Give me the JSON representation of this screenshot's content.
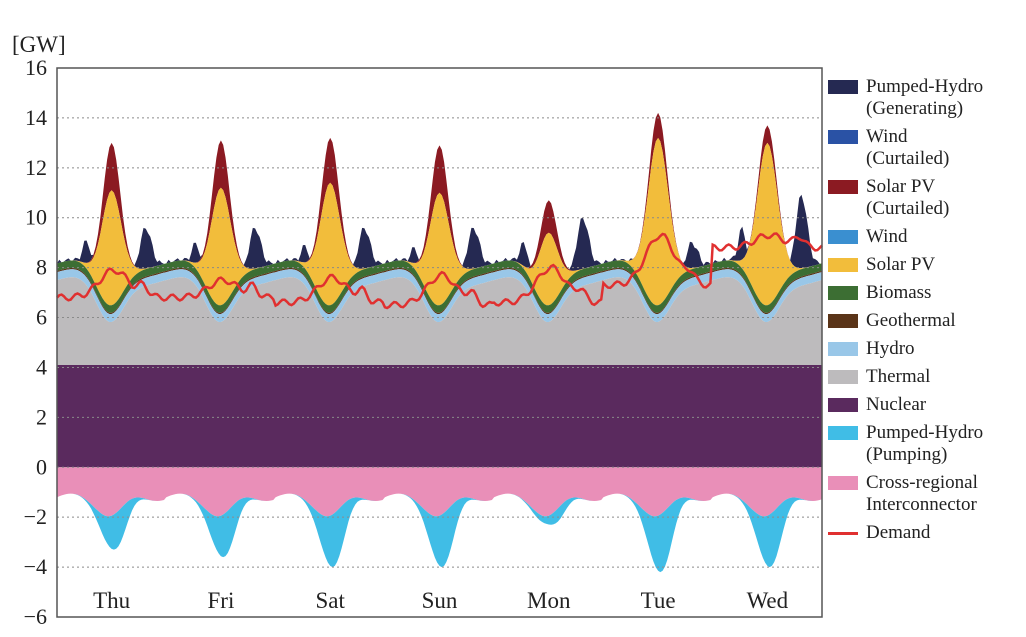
{
  "chart_data": {
    "type": "area",
    "unit_label": "[GW]",
    "ylim": [
      -6,
      16
    ],
    "yticks": [
      "16",
      "14",
      "12",
      "10",
      "8",
      "6",
      "4",
      "2",
      "0",
      "−2",
      "−4",
      "−6"
    ],
    "ytick_values": [
      16,
      14,
      12,
      10,
      8,
      6,
      4,
      2,
      0,
      -2,
      -4,
      -6
    ],
    "grid": "dotted-horizontal",
    "legend_position": "right",
    "days": [
      "Thu",
      "Fri",
      "Sat",
      "Sun",
      "Mon",
      "Tue",
      "Wed"
    ],
    "series": [
      {
        "name": "Pumped-Hydro\n(Generating)",
        "color": "#252952"
      },
      {
        "name": "Wind\n(Curtailed)",
        "color": "#2a52a5"
      },
      {
        "name": "Solar PV\n(Curtailed)",
        "color": "#8b1a22"
      },
      {
        "name": "Wind",
        "color": "#3a8fd0"
      },
      {
        "name": "Solar PV",
        "color": "#f2bd3b"
      },
      {
        "name": "Biomass",
        "color": "#3c6e33"
      },
      {
        "name": "Geothermal",
        "color": "#5a3418"
      },
      {
        "name": "Hydro",
        "color": "#99c7e8"
      },
      {
        "name": "Thermal",
        "color": "#bdbbbd"
      },
      {
        "name": "Nuclear",
        "color": "#5a2a5e"
      },
      {
        "name": "Pumped-Hydro\n(Pumping)",
        "color": "#40bde6"
      },
      {
        "name": "Cross-regional\nInterconnector",
        "color": "#e98fb8"
      },
      {
        "name": "Demand",
        "color": "#e03030",
        "style": "line"
      }
    ],
    "daily": {
      "solar_peak_total": [
        11.1,
        11.2,
        11.4,
        11.0,
        9.4,
        13.2,
        13.0
      ],
      "curtailed_peak_total": [
        13.0,
        13.1,
        13.2,
        12.9,
        10.7,
        14.2,
        13.7
      ],
      "pumped_gen_evening": [
        9.6,
        9.6,
        9.6,
        9.6,
        10.0,
        9.0,
        10.9
      ],
      "pumped_gen_morning": [
        9.1,
        9.0,
        8.9,
        8.8,
        9.0,
        8.3,
        9.6
      ],
      "pumping_min": [
        -3.3,
        -3.6,
        -4.0,
        -4.0,
        -2.3,
        -4.2,
        -4.0
      ],
      "demand_day": [
        7.9,
        7.5,
        7.6,
        7.7,
        8.0,
        9.3,
        9.3
      ],
      "demand_night": [
        6.8,
        6.8,
        6.6,
        6.5,
        6.6,
        7.3,
        8.8
      ]
    },
    "nuclear_level": 4.1,
    "thermal_night": 7.5,
    "thermal_midday": 5.8,
    "interconnector_base": -1.2
  },
  "legend": {
    "items": [
      "Pumped-Hydro\n(Generating)",
      "Wind\n(Curtailed)",
      "Solar PV\n(Curtailed)",
      "Wind",
      "Solar PV",
      "Biomass",
      "Geothermal",
      "Hydro",
      "Thermal",
      "Nuclear",
      "Pumped-Hydro\n(Pumping)",
      "Cross-regional\nInterconnector",
      "Demand"
    ]
  }
}
